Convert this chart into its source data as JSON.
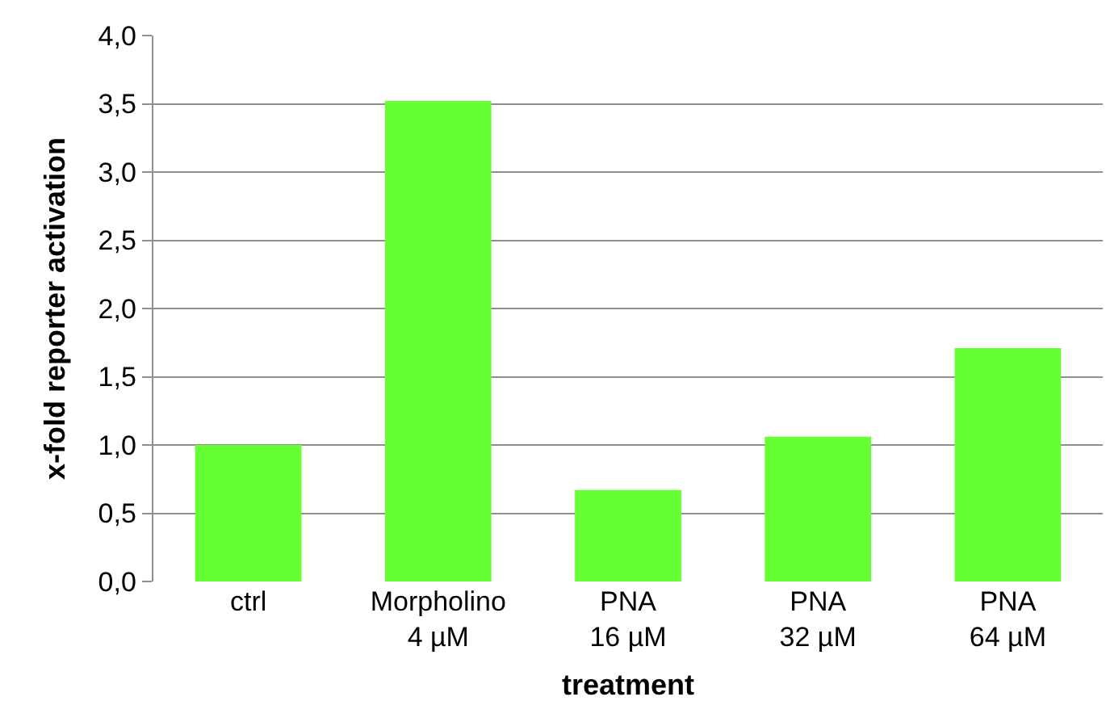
{
  "chart_data": {
    "type": "bar",
    "xlabel": "treatment",
    "ylabel": "x-fold reporter activation",
    "categories": [
      "ctrl",
      "Morpholino\n4 µM",
      "PNA\n16 µM",
      "PNA\n32 µM",
      "PNA\n64 µM"
    ],
    "values": [
      1.0,
      3.52,
      0.67,
      1.06,
      1.71
    ],
    "color": "#66ff33",
    "ylim": [
      0,
      4
    ],
    "yticks": [
      {
        "value": 0,
        "label": "0,0"
      },
      {
        "value": 0.5,
        "label": "0,5"
      },
      {
        "value": 1,
        "label": "1,0"
      },
      {
        "value": 1.5,
        "label": "1,5"
      },
      {
        "value": 2,
        "label": "2,0"
      },
      {
        "value": 2.5,
        "label": "2,5"
      },
      {
        "value": 3,
        "label": "3,0"
      },
      {
        "value": 3.5,
        "label": "3,5"
      },
      {
        "value": 4,
        "label": "4,0"
      }
    ],
    "grid": "y",
    "legend": false
  }
}
